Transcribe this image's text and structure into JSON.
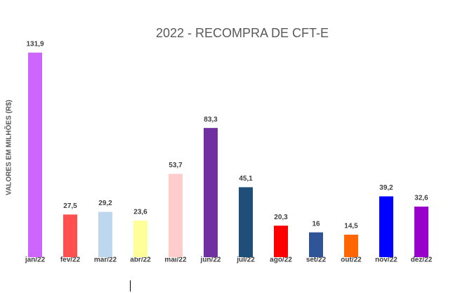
{
  "chart_data": {
    "type": "bar",
    "title": "2022 - RECOMPRA DE CFT-E",
    "y_label": "VALORES EM MILHÕES (R$)",
    "categories": [
      "jan/22",
      "fev/22",
      "mar/22",
      "abr/22",
      "mai/22",
      "jun/22",
      "jul/22",
      "ago/22",
      "set/22",
      "out/22",
      "nov/22",
      "dez/22"
    ],
    "values": [
      131.9,
      27.5,
      29.2,
      23.6,
      53.7,
      83.3,
      45.1,
      20.3,
      16,
      14.5,
      39.2,
      32.6
    ],
    "value_labels": [
      "131,9",
      "27,5",
      "29,2",
      "23,6",
      "53,7",
      "83,3",
      "45,1",
      "20,3",
      "16",
      "14,5",
      "39,2",
      "32,6"
    ],
    "colors": [
      "#cc66ff",
      "#ff5050",
      "#bdd7ee",
      "#ffff99",
      "#ffcccc",
      "#7030a0",
      "#1f4e79",
      "#ff0000",
      "#2f5597",
      "#ff6600",
      "#0000ff",
      "#9900cc"
    ],
    "ylim": [
      0,
      140
    ]
  }
}
